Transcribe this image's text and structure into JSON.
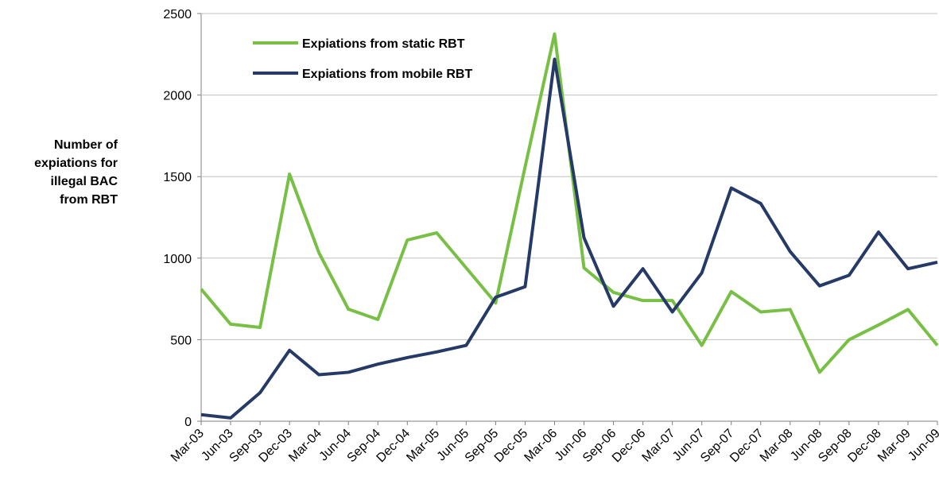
{
  "chart_data": {
    "type": "line",
    "y_label": [
      "Number of",
      "expiations for",
      "illegal BAC",
      "from RBT"
    ],
    "categories": [
      "Mar-03",
      "Jun-03",
      "Sep-03",
      "Dec-03",
      "Mar-04",
      "Jun-04",
      "Sep-04",
      "Dec-04",
      "Mar-05",
      "Jun-05",
      "Sep-05",
      "Dec-05",
      "Mar-06",
      "Jun-06",
      "Sep-06",
      "Dec-06",
      "Mar-07",
      "Jun-07",
      "Sep-07",
      "Dec-07",
      "Mar-08",
      "Jun-08",
      "Sep-08",
      "Dec-08",
      "Mar-09",
      "Jun-09"
    ],
    "series": [
      {
        "name": "Expiations from static RBT",
        "color": "#78c045",
        "values": [
          810,
          595,
          575,
          1515,
          1033,
          687,
          624,
          1111,
          1155,
          940,
          725,
          1560,
          2375,
          940,
          790,
          740,
          740,
          465,
          795,
          670,
          685,
          300,
          500,
          590,
          685,
          465
        ]
      },
      {
        "name": "Expiations from mobile RBT",
        "color": "#263a68",
        "values": [
          40,
          20,
          175,
          435,
          285,
          300,
          350,
          390,
          425,
          465,
          760,
          825,
          2220,
          1125,
          705,
          935,
          670,
          910,
          1430,
          1335,
          1040,
          830,
          895,
          1160,
          935,
          975
        ]
      }
    ],
    "ylim": [
      0,
      2500
    ],
    "yticks": [
      0,
      500,
      1000,
      1500,
      2000,
      2500
    ],
    "grid": true
  }
}
